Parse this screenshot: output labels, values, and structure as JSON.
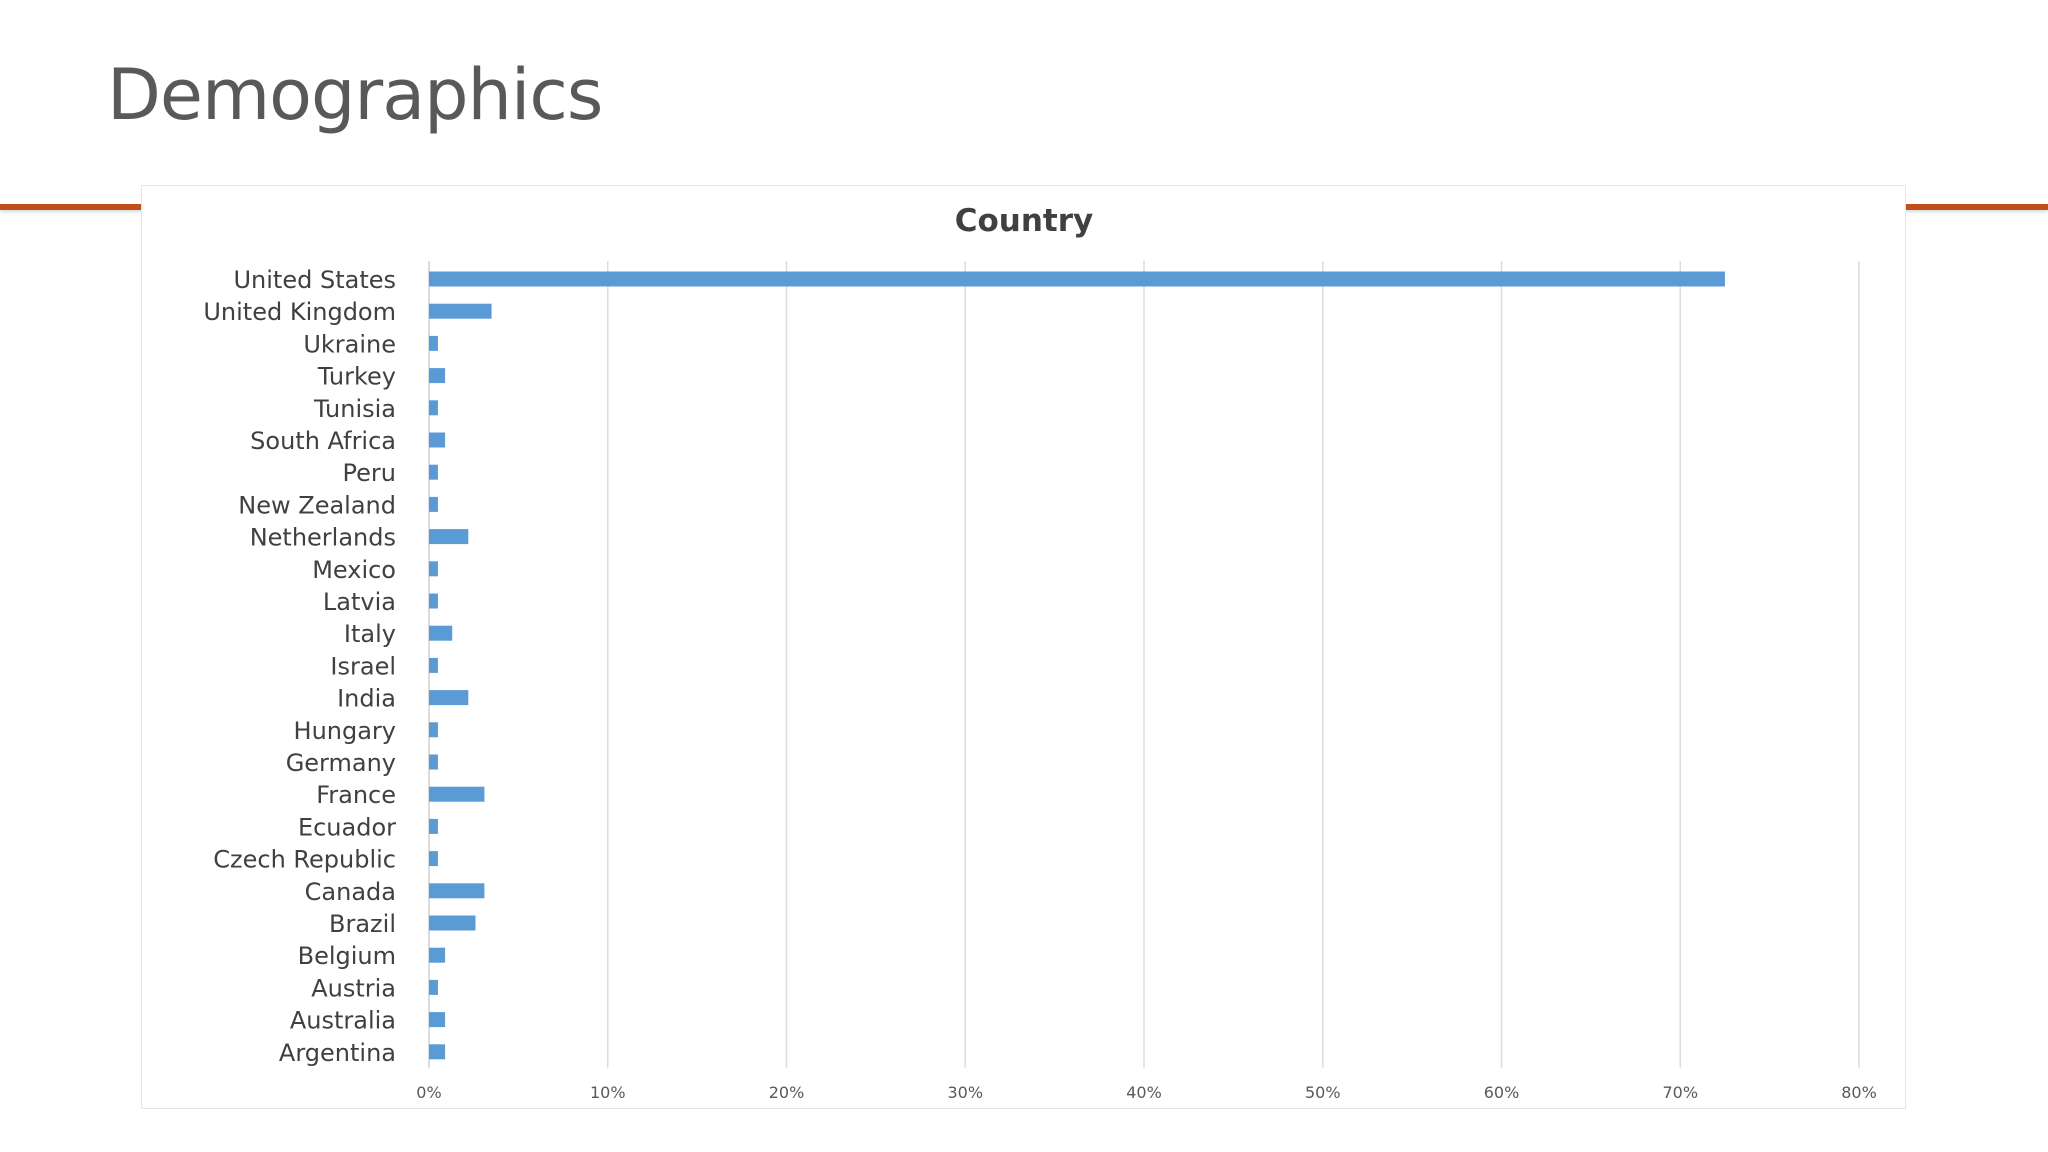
{
  "slide": {
    "title": "Demographics",
    "accent_color": "#c0501a"
  },
  "chart_data": {
    "type": "bar",
    "orientation": "horizontal",
    "title": "Country",
    "xlabel": "",
    "ylabel": "",
    "xlim": [
      0,
      0.8
    ],
    "x_ticks": [
      0,
      0.1,
      0.2,
      0.3,
      0.4,
      0.5,
      0.6,
      0.7,
      0.8
    ],
    "x_tick_labels": [
      "0%",
      "10%",
      "20%",
      "30%",
      "40%",
      "50%",
      "60%",
      "70%",
      "80%"
    ],
    "grid": true,
    "legend": "none",
    "bar_color": "#5b9bd5",
    "categories": [
      "United States",
      "United Kingdom",
      "Ukraine",
      "Turkey",
      "Tunisia",
      "South Africa",
      "Peru",
      "New Zealand",
      "Netherlands",
      "Mexico",
      "Latvia",
      "Italy",
      "Israel",
      "India",
      "Hungary",
      "Germany",
      "France",
      "Ecuador",
      "Czech Republic",
      "Canada",
      "Brazil",
      "Belgium",
      "Austria",
      "Australia",
      "Argentina"
    ],
    "values": [
      0.725,
      0.035,
      0.005,
      0.009,
      0.005,
      0.009,
      0.005,
      0.005,
      0.022,
      0.005,
      0.005,
      0.013,
      0.005,
      0.022,
      0.005,
      0.005,
      0.031,
      0.005,
      0.005,
      0.031,
      0.026,
      0.009,
      0.005,
      0.009,
      0.009
    ]
  }
}
